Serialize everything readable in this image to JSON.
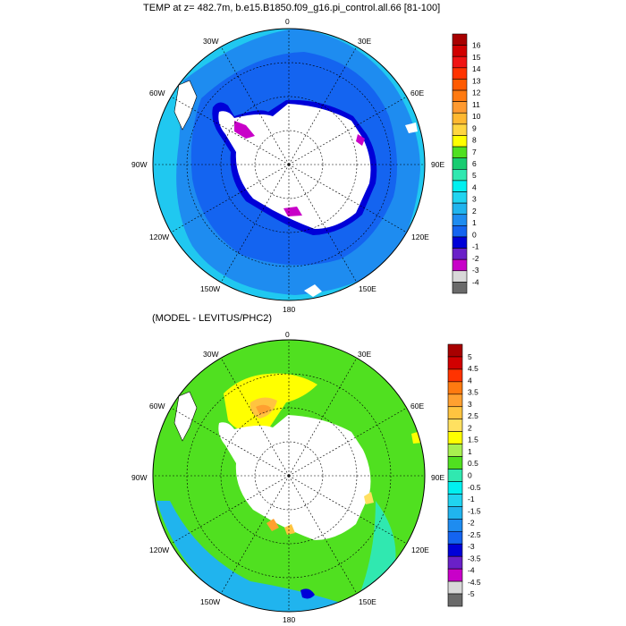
{
  "panels": [
    {
      "title": "TEMP at z= 482.7m, b.e15.B1850.f09_g16.pi_control.all.66 [81-100]",
      "lon_labels": [
        "0",
        "30E",
        "60E",
        "90E",
        "120E",
        "150E",
        "180",
        "150W",
        "120W",
        "90W",
        "60W",
        "30W"
      ],
      "colorbar": {
        "labels": [
          "16",
          "15",
          "14",
          "13",
          "12",
          "11",
          "10",
          "9",
          "8",
          "7",
          "6",
          "5",
          "4",
          "3",
          "2",
          "1",
          "0",
          "-1",
          "-2",
          "-3",
          "-4"
        ],
        "colors": [
          "#a80000",
          "#d10000",
          "#f01414",
          "#ff3300",
          "#ff5a00",
          "#ff7a10",
          "#ff9a30",
          "#ffb830",
          "#ffd640",
          "#ffff00",
          "#50e020",
          "#18cc70",
          "#30e8b0",
          "#00f0f0",
          "#20d4f0",
          "#20b4ee",
          "#1e8cf0",
          "#1464f0",
          "#0000d8",
          "#6a20c8",
          "#c800c8",
          "#d8d8d8",
          "#6a6a6a"
        ]
      }
    },
    {
      "title": "(MODEL - LEVITUS/PHC2)",
      "lon_labels": [
        "0",
        "30E",
        "60E",
        "90E",
        "120E",
        "150E",
        "180",
        "150W",
        "120W",
        "90W",
        "60W",
        "30W"
      ],
      "colorbar": {
        "labels": [
          "5",
          "4.5",
          "4",
          "3.5",
          "3",
          "2.5",
          "2",
          "1.5",
          "1",
          "0.5",
          "0",
          "-0.5",
          "-1",
          "-1.5",
          "-2",
          "-2.5",
          "-3",
          "-3.5",
          "-4",
          "-4.5",
          "-5"
        ],
        "colors": [
          "#a80000",
          "#d10000",
          "#ff3300",
          "#ff7a10",
          "#ffa030",
          "#ffc440",
          "#ffe060",
          "#ffff00",
          "#a8f050",
          "#50e020",
          "#30e8b0",
          "#00f0f0",
          "#20d4f0",
          "#20b4ee",
          "#1e8cf0",
          "#1464f0",
          "#0000d8",
          "#6a20c8",
          "#c800c8",
          "#d8d8d8",
          "#6a6a6a"
        ]
      }
    }
  ]
}
